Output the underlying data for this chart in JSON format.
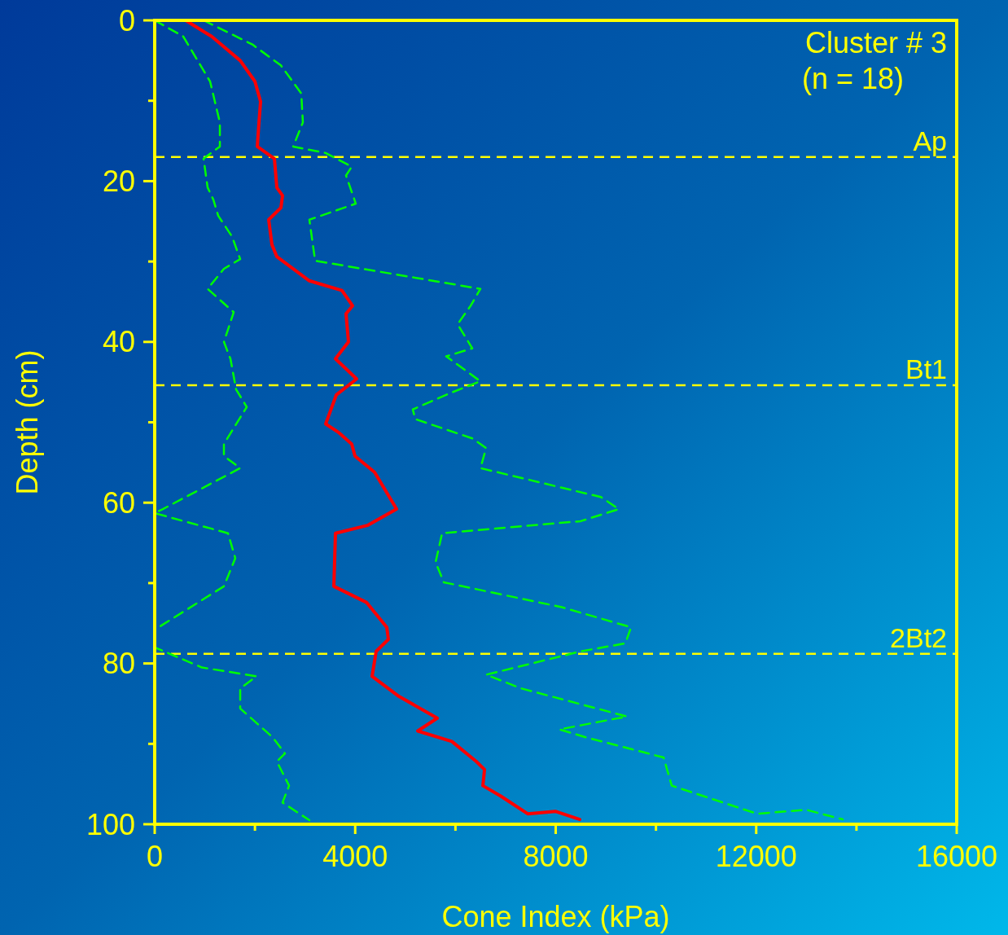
{
  "chart_data": {
    "type": "line",
    "xlabel": "Cone Index (kPa)",
    "ylabel": "Depth (cm)",
    "xlim": [
      0,
      16000
    ],
    "ylim": [
      100,
      0
    ],
    "xticks": [
      0,
      {
        "value": 2000,
        "label": null
      },
      4000,
      {
        "value": 6000,
        "label": null
      },
      8000,
      {
        "value": 10000,
        "label": null
      },
      12000,
      {
        "value": 14000,
        "label": null
      },
      16000
    ],
    "yticks": [
      0,
      {
        "value": 10,
        "label": null
      },
      20,
      {
        "value": 30,
        "label": null
      },
      40,
      {
        "value": 50,
        "label": null
      },
      60,
      {
        "value": 70,
        "label": null
      },
      80,
      {
        "value": 90,
        "label": null
      },
      100
    ],
    "grid": false,
    "annotations": [
      "Cluster # 3",
      "(n = 18)"
    ],
    "ref_lines": [
      {
        "axis": "y",
        "value": 17,
        "label": "Ap",
        "color": "#ffff00",
        "line_style": "dashed"
      },
      {
        "axis": "y",
        "value": 45.4,
        "label": "Bt1",
        "color": "#ffff00",
        "line_style": "dashed"
      },
      {
        "axis": "y",
        "value": 78.8,
        "label": "2Bt2",
        "color": "#ffff00",
        "line_style": "dashed"
      }
    ],
    "series": [
      {
        "color": "#00ff00",
        "line_style": "dashed",
        "x": [
          0,
          569,
          1105,
          1300,
          1300,
          975,
          1056,
          1170,
          1267,
          1543,
          1706,
          1381,
          1056,
          1576,
          1381,
          1511,
          1624,
          1836,
          1381,
          1381,
          1706,
          162,
          0,
          1462,
          1608,
          1381,
          0,
          0,
          942,
          2030,
          1706,
          1706,
          2356,
          2599,
          2437,
          2681,
          2550,
          3086
        ],
        "values": [
          0,
          2,
          7.6,
          12.7,
          15.7,
          17.2,
          20.8,
          22.3,
          24.3,
          26.9,
          29.7,
          30.9,
          33.4,
          36.3,
          40,
          42.1,
          45.9,
          48.1,
          52.7,
          54.2,
          55.7,
          60.8,
          61.3,
          63.8,
          66.9,
          70.4,
          75.8,
          78,
          80.5,
          81.6,
          83.1,
          85.6,
          89.2,
          91.2,
          92.2,
          95.2,
          97.3,
          99.5
        ]
      },
      {
        "color": "#00ff00",
        "line_style": "dashed",
        "x": [
          975,
          1949,
          2518,
          2924,
          2956,
          2762,
          3411,
          3931,
          3817,
          4012,
          3086,
          3200,
          6498,
          6303,
          6043,
          6336,
          5815,
          6498,
          5881,
          5149,
          5198,
          6336,
          6612,
          6498,
          8902,
          9260,
          8496,
          5734,
          5604,
          5767,
          8122,
          9503,
          9389,
          8496,
          6612,
          7310,
          9422,
          8074,
          8610,
          10153,
          10315,
          12021,
          12996,
          13727
        ],
        "values": [
          0,
          3,
          5.6,
          9.1,
          12.7,
          15.7,
          16.5,
          18.2,
          19.3,
          22.8,
          24.8,
          29.9,
          33.4,
          35.5,
          37.8,
          40.8,
          41.8,
          44.9,
          46.4,
          48.4,
          49.6,
          52,
          53.2,
          55.7,
          59.3,
          60.8,
          62.3,
          63.8,
          67.4,
          69.9,
          73,
          75.5,
          77.5,
          78.5,
          81.4,
          83.1,
          86.6,
          88.2,
          89.2,
          91.7,
          95.2,
          98.7,
          98.2,
          99.4
        ]
      },
      {
        "color": "#ff0000",
        "line_style": "solid",
        "x": [
          617,
          1137,
          1706,
          2000,
          2112,
          2080,
          2047,
          2388,
          2437,
          2550,
          2518,
          2274,
          2339,
          2437,
          3086,
          3736,
          3947,
          3817,
          3866,
          3606,
          4028,
          3622,
          3411,
          3655,
          3931,
          3996,
          4386,
          4825,
          4256,
          3606,
          3574,
          4224,
          4630,
          4662,
          4418,
          4337,
          4873,
          5637,
          5247,
          5929,
          6417,
          6580,
          6547,
          6905,
          7441,
          7993,
          8480
        ],
        "values": [
          0,
          2,
          5,
          7.6,
          10.1,
          12.7,
          15.7,
          17.2,
          20.8,
          21.8,
          23.3,
          24.8,
          27.9,
          29.4,
          32.4,
          33.6,
          35.5,
          36.5,
          40,
          42.1,
          44.6,
          46.6,
          50.2,
          51.2,
          52.7,
          54.2,
          56.2,
          60.8,
          62.8,
          63.8,
          70.4,
          72.4,
          75.5,
          77,
          78.5,
          81.6,
          84.1,
          86.8,
          88.4,
          89.7,
          92.2,
          93.2,
          95.2,
          96.5,
          98.7,
          98.4,
          99.4
        ]
      }
    ]
  }
}
